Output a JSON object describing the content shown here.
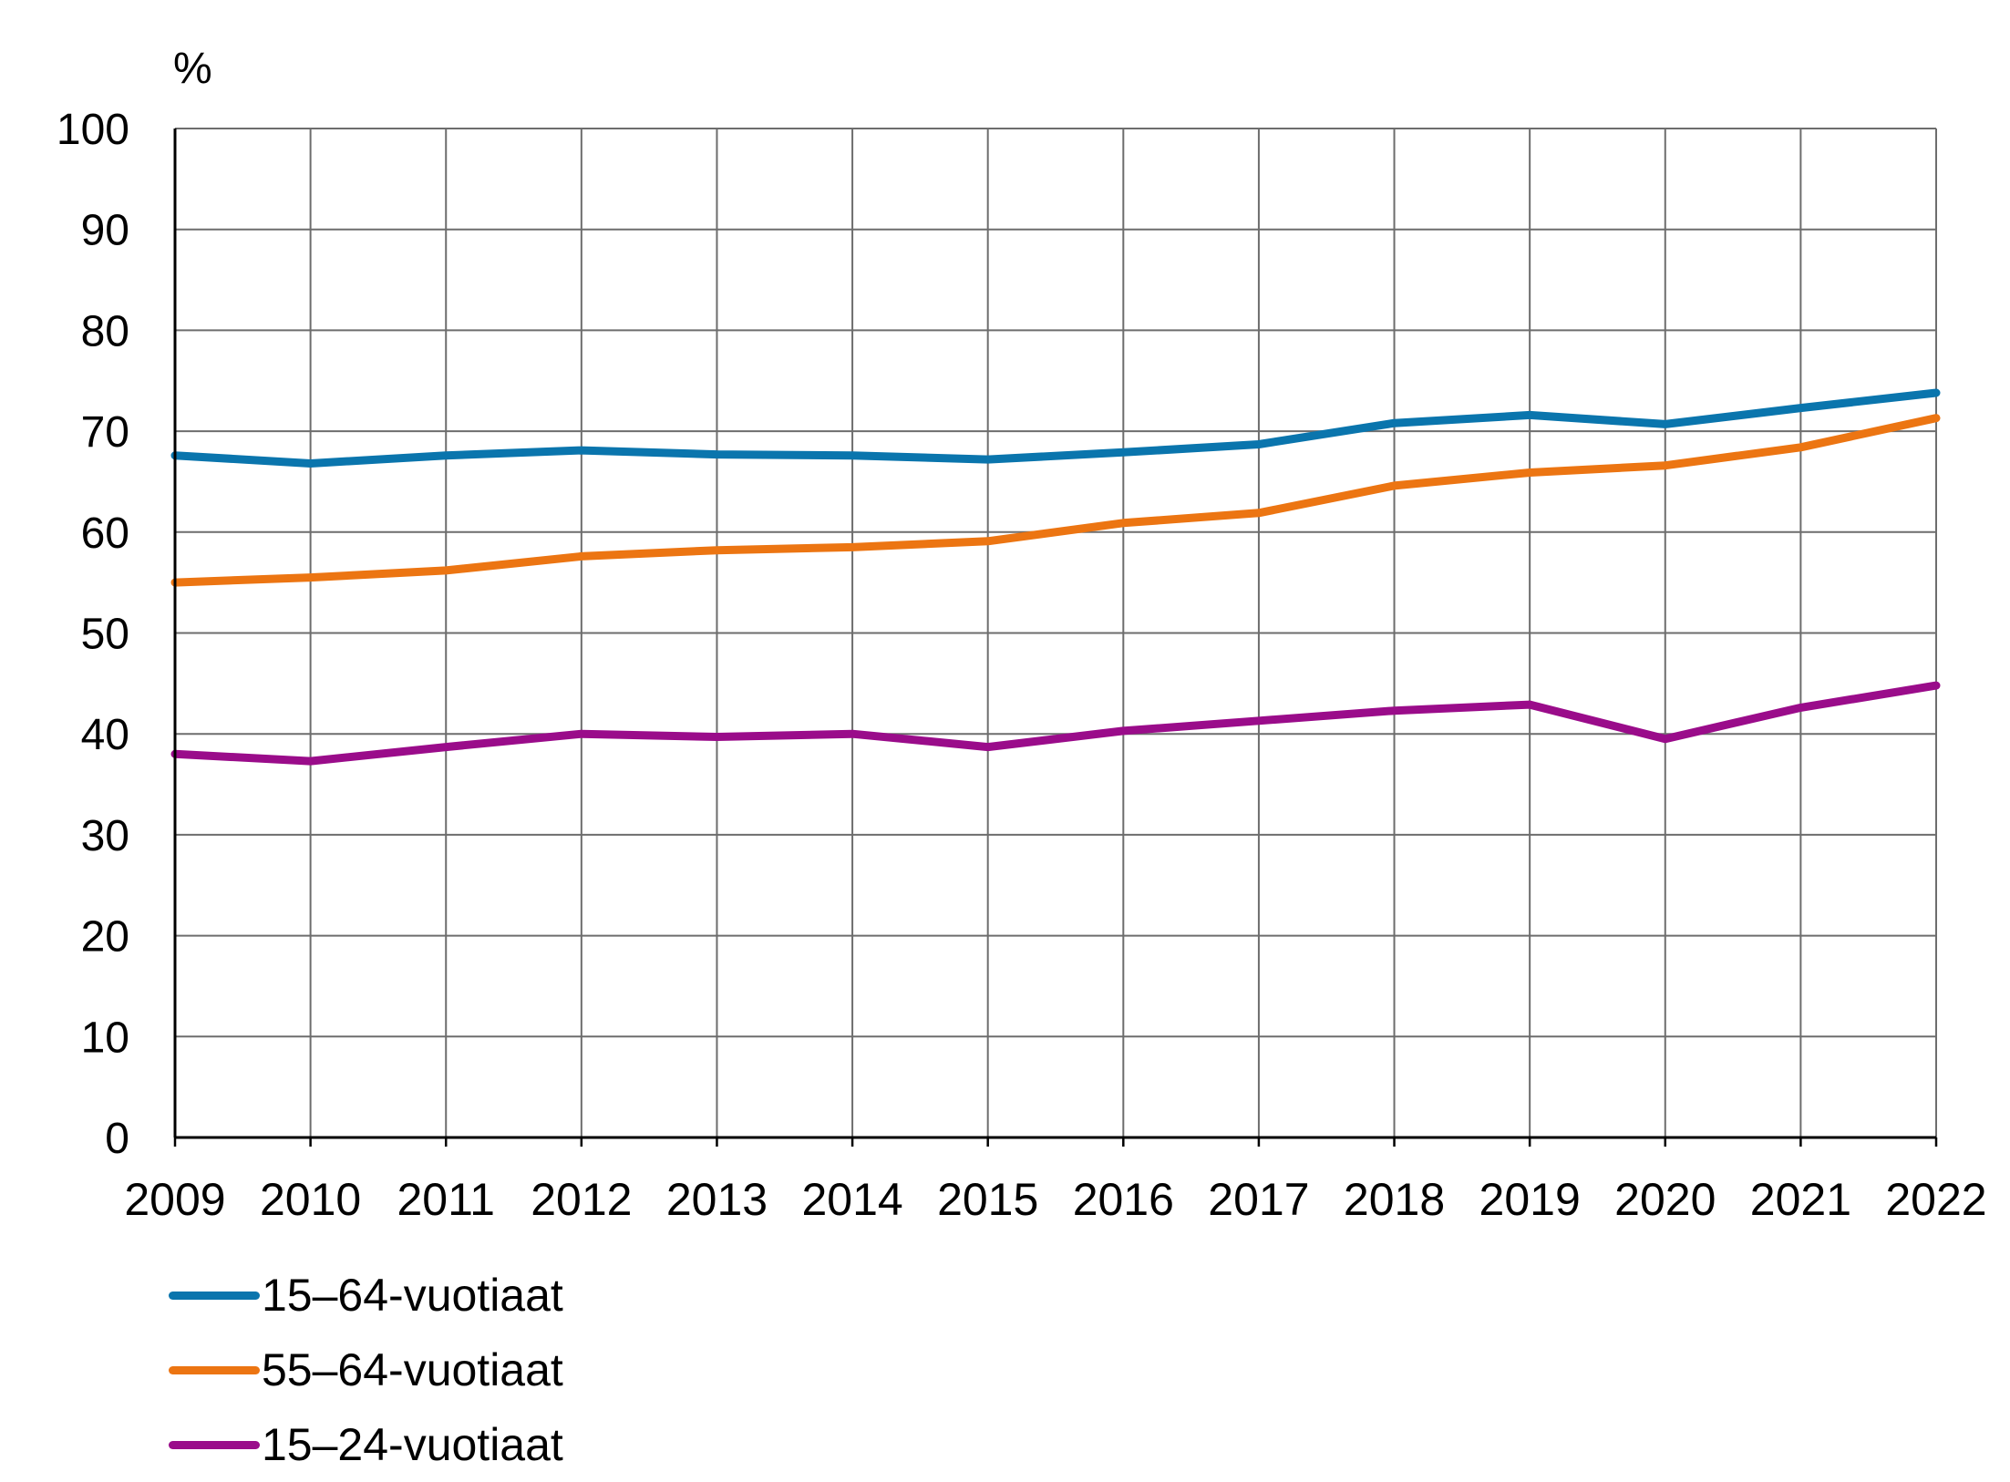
{
  "chart_data": {
    "type": "line",
    "unit_label": "%",
    "categories": [
      "2009",
      "2010",
      "2011",
      "2012",
      "2013",
      "2014",
      "2015",
      "2016",
      "2017",
      "2018",
      "2019",
      "2020",
      "2021",
      "2022"
    ],
    "ylim": [
      0,
      100
    ],
    "yticks": [
      0,
      10,
      20,
      30,
      40,
      50,
      60,
      70,
      80,
      90,
      100
    ],
    "grid": true,
    "legend_position": "bottom-left",
    "series": [
      {
        "name": "15–64-vuotiaat",
        "color": "#0a75ad",
        "values": [
          67.6,
          66.8,
          67.6,
          68.1,
          67.7,
          67.6,
          67.2,
          67.9,
          68.7,
          70.8,
          71.6,
          70.7,
          72.3,
          73.8
        ]
      },
      {
        "name": "55–64-vuotiaat",
        "color": "#ec7512",
        "values": [
          55.0,
          55.5,
          56.2,
          57.6,
          58.2,
          58.5,
          59.1,
          60.9,
          61.9,
          64.6,
          65.9,
          66.6,
          68.4,
          71.3
        ]
      },
      {
        "name": "15–24-vuotiaat",
        "color": "#9a0c8a",
        "values": [
          38.0,
          37.3,
          38.7,
          40.0,
          39.7,
          40.0,
          38.7,
          40.3,
          41.3,
          42.3,
          42.9,
          39.5,
          42.6,
          44.8
        ]
      }
    ]
  }
}
